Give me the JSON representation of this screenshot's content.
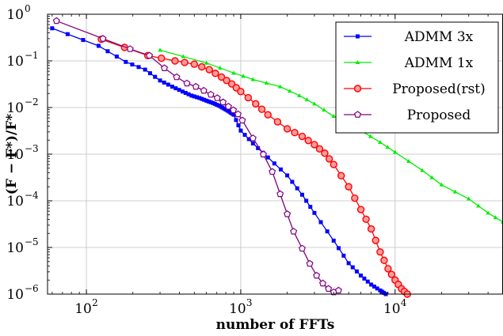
{
  "chart_data": {
    "type": "line",
    "title": "",
    "xlabel": "number of FFTs",
    "ylabel": "(F − F*)/F*",
    "xscale": "log",
    "yscale": "log",
    "xlim": [
      56,
      50000
    ],
    "ylim": [
      1e-06,
      1
    ],
    "grid": true,
    "legend_position": "top-right",
    "x_ticks": [
      {
        "value": 100,
        "label": "10",
        "exp": "2"
      },
      {
        "value": 1000,
        "label": "10",
        "exp": "3"
      },
      {
        "value": 10000,
        "label": "10",
        "exp": "4"
      }
    ],
    "y_ticks": [
      {
        "value": 1,
        "label": "10",
        "exp": "0"
      },
      {
        "value": 0.1,
        "label": "10",
        "exp": "−1"
      },
      {
        "value": 0.01,
        "label": "10",
        "exp": "−2"
      },
      {
        "value": 0.001,
        "label": "10",
        "exp": "−3"
      },
      {
        "value": 0.0001,
        "label": "10",
        "exp": "−4"
      },
      {
        "value": 1e-05,
        "label": "10",
        "exp": "−5"
      },
      {
        "value": 1e-06,
        "label": "10",
        "exp": "−6"
      }
    ],
    "series": [
      {
        "name": "ADMM 3x",
        "color": "#0000ff",
        "marker": "square",
        "x": [
          60,
          120,
          180,
          240,
          300,
          360,
          420,
          480,
          540,
          600,
          660,
          720,
          780,
          840,
          900,
          1000,
          1200,
          1500,
          2000,
          2500,
          3000,
          4000,
          5000,
          6000,
          7000,
          8000,
          8700
        ],
        "y": [
          0.5,
          0.21,
          0.095,
          0.065,
          0.038,
          0.028,
          0.022,
          0.018,
          0.016,
          0.014,
          0.0125,
          0.011,
          0.0095,
          0.0082,
          0.007,
          0.0032,
          0.0017,
          0.00085,
          0.00035,
          0.000135,
          5.5e-05,
          1.4e-05,
          4.6e-06,
          2.5e-06,
          1.6e-06,
          1.2e-06,
          1e-06
        ]
      },
      {
        "name": "ADMM 1x",
        "color": "#00ee00",
        "marker": "triangle",
        "x": [
          300,
          600,
          900,
          1200,
          1800,
          2400,
          3000,
          4000,
          5000,
          6000,
          8000,
          10000,
          15000,
          20000,
          30000,
          40000,
          50000
        ],
        "y": [
          0.17,
          0.09,
          0.055,
          0.04,
          0.028,
          0.018,
          0.012,
          0.0065,
          0.0045,
          0.0032,
          0.0018,
          0.0011,
          0.00045,
          0.00022,
          0.00011,
          5.5e-05,
          3.5e-05
        ]
      },
      {
        "name": "Proposed(rst)",
        "color": "#ff0000",
        "marker": "circle",
        "x": [
          125,
          250,
          375,
          500,
          625,
          750,
          875,
          1000,
          1250,
          1500,
          2000,
          2500,
          3000,
          3500,
          4000,
          5000,
          6000,
          7000,
          8000,
          9000,
          10000,
          11000,
          12000
        ],
        "y": [
          0.29,
          0.13,
          0.1,
          0.085,
          0.065,
          0.045,
          0.032,
          0.022,
          0.012,
          0.007,
          0.0035,
          0.0024,
          0.0016,
          0.00105,
          0.0006,
          0.0002,
          6.5e-05,
          2.5e-05,
          8e-06,
          3.5e-06,
          2e-06,
          1.3e-06,
          1e-06
        ]
      },
      {
        "name": "Proposed",
        "color": "#7f007f",
        "marker": "pentagon",
        "x": [
          64,
          128,
          192,
          256,
          320,
          384,
          448,
          512,
          576,
          640,
          704,
          768,
          832,
          896,
          960,
          1024,
          1200,
          1400,
          1600,
          1800,
          2000,
          2200,
          2500,
          2800,
          3100,
          3400,
          3700,
          4000,
          4300
        ],
        "y": [
          0.72,
          0.3,
          0.18,
          0.13,
          0.07,
          0.045,
          0.033,
          0.028,
          0.023,
          0.019,
          0.016,
          0.013,
          0.0105,
          0.0088,
          0.0072,
          0.0053,
          0.0022,
          0.00099,
          0.00042,
          0.00014,
          5.2e-05,
          2.2e-05,
          9.5e-06,
          4.5e-06,
          2.5e-06,
          1.7e-06,
          1.3e-06,
          1.1e-06,
          1.2e-06
        ]
      }
    ]
  }
}
